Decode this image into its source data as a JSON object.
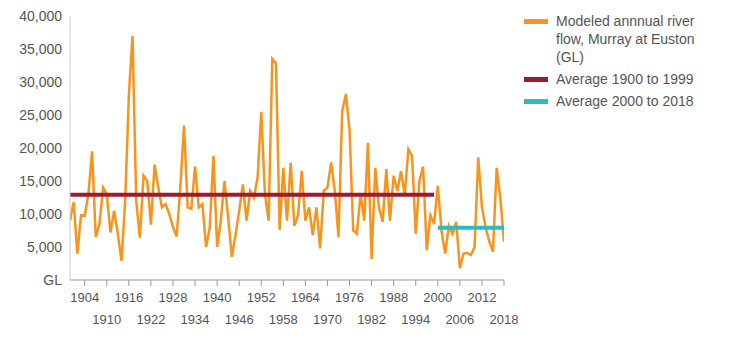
{
  "chart_data": {
    "type": "line",
    "grid": false,
    "x": [
      1900,
      1901,
      1902,
      1903,
      1904,
      1905,
      1906,
      1907,
      1908,
      1909,
      1910,
      1911,
      1912,
      1913,
      1914,
      1915,
      1916,
      1917,
      1918,
      1919,
      1920,
      1921,
      1922,
      1923,
      1924,
      1925,
      1926,
      1927,
      1928,
      1929,
      1930,
      1931,
      1932,
      1933,
      1934,
      1935,
      1936,
      1937,
      1938,
      1939,
      1940,
      1941,
      1942,
      1943,
      1944,
      1945,
      1946,
      1947,
      1948,
      1949,
      1950,
      1951,
      1952,
      1953,
      1954,
      1955,
      1956,
      1957,
      1958,
      1959,
      1960,
      1961,
      1962,
      1963,
      1964,
      1965,
      1966,
      1967,
      1968,
      1969,
      1970,
      1971,
      1972,
      1973,
      1974,
      1975,
      1976,
      1977,
      1978,
      1979,
      1980,
      1981,
      1982,
      1983,
      1984,
      1985,
      1986,
      1987,
      1988,
      1989,
      1990,
      1991,
      1992,
      1993,
      1994,
      1995,
      1996,
      1997,
      1998,
      1999,
      2000,
      2001,
      2002,
      2003,
      2004,
      2005,
      2006,
      2007,
      2008,
      2009,
      2010,
      2011,
      2012,
      2013,
      2014,
      2015,
      2016,
      2017,
      2018
    ],
    "xlim": [
      1900,
      2018
    ],
    "xticks": [
      1904,
      1910,
      1916,
      1922,
      1928,
      1934,
      1940,
      1946,
      1952,
      1958,
      1964,
      1970,
      1976,
      1982,
      1988,
      1994,
      2000,
      2006,
      2012,
      2018
    ],
    "ylim": [
      0,
      40000
    ],
    "yticks": [
      {
        "value": 0,
        "label": "GL"
      },
      {
        "value": 5000,
        "label": "5,000"
      },
      {
        "value": 10000,
        "label": "10,000"
      },
      {
        "value": 15000,
        "label": "15,000"
      },
      {
        "value": 20000,
        "label": "20,000"
      },
      {
        "value": 25000,
        "label": "25,000"
      },
      {
        "value": 30000,
        "label": "30,000"
      },
      {
        "value": 35000,
        "label": "35,000"
      },
      {
        "value": 40000,
        "label": "40,000"
      }
    ],
    "series": [
      {
        "name": "Modeled annnual river flow, Murray at Euston (GL)",
        "color": "#f7941d",
        "values": [
          9000,
          11800,
          4000,
          9800,
          9700,
          13000,
          19500,
          6500,
          8500,
          14000,
          13000,
          7200,
          10500,
          7000,
          2900,
          12000,
          28000,
          37000,
          12000,
          6400,
          15800,
          15000,
          8400,
          17500,
          14000,
          11000,
          11500,
          10000,
          8000,
          6600,
          14000,
          23400,
          11000,
          10800,
          17200,
          11000,
          11500,
          5000,
          8000,
          18800,
          5000,
          9000,
          15000,
          9500,
          3500,
          6800,
          10500,
          14500,
          9000,
          13500,
          12500,
          15500,
          25500,
          13000,
          9000,
          33500,
          32800,
          7600,
          17000,
          9000,
          17800,
          8200,
          9800,
          16500,
          9000,
          11000,
          6800,
          11000,
          4800,
          13500,
          14000,
          17800,
          13500,
          6500,
          25500,
          28200,
          22800,
          7500,
          7000,
          13000,
          9000,
          20800,
          3200,
          17000,
          11000,
          8800,
          16800,
          9000,
          15800,
          13500,
          16500,
          12800,
          19800,
          18800,
          7000,
          15000,
          17200,
          4500,
          9800,
          8500,
          14300,
          7500,
          4000,
          8200,
          7000,
          8800,
          1800,
          4000,
          4100,
          3800,
          5000,
          18600,
          11000,
          8000,
          5800,
          4300,
          17000,
          12500,
          5800
        ]
      },
      {
        "name": "Average 1900 to 1999",
        "color": "#9b1b30",
        "values": [
          12900,
          12900,
          12900,
          12900,
          12900,
          12900,
          12900,
          12900,
          12900,
          12900,
          12900,
          12900,
          12900,
          12900,
          12900,
          12900,
          12900,
          12900,
          12900,
          12900,
          12900,
          12900,
          12900,
          12900,
          12900,
          12900,
          12900,
          12900,
          12900,
          12900,
          12900,
          12900,
          12900,
          12900,
          12900,
          12900,
          12900,
          12900,
          12900,
          12900,
          12900,
          12900,
          12900,
          12900,
          12900,
          12900,
          12900,
          12900,
          12900,
          12900,
          12900,
          12900,
          12900,
          12900,
          12900,
          12900,
          12900,
          12900,
          12900,
          12900,
          12900,
          12900,
          12900,
          12900,
          12900,
          12900,
          12900,
          12900,
          12900,
          12900,
          12900,
          12900,
          12900,
          12900,
          12900,
          12900,
          12900,
          12900,
          12900,
          12900,
          12900,
          12900,
          12900,
          12900,
          12900,
          12900,
          12900,
          12900,
          12900,
          12900,
          12900,
          12900,
          12900,
          12900,
          12900,
          12900,
          12900,
          12900,
          12900,
          12900,
          null,
          null,
          null,
          null,
          null,
          null,
          null,
          null,
          null,
          null,
          null,
          null,
          null,
          null,
          null,
          null,
          null,
          null,
          null
        ]
      },
      {
        "name": "Average 2000 to 2018",
        "color": "#2bbcbf",
        "values": [
          null,
          null,
          null,
          null,
          null,
          null,
          null,
          null,
          null,
          null,
          null,
          null,
          null,
          null,
          null,
          null,
          null,
          null,
          null,
          null,
          null,
          null,
          null,
          null,
          null,
          null,
          null,
          null,
          null,
          null,
          null,
          null,
          null,
          null,
          null,
          null,
          null,
          null,
          null,
          null,
          null,
          null,
          null,
          null,
          null,
          null,
          null,
          null,
          null,
          null,
          null,
          null,
          null,
          null,
          null,
          null,
          null,
          null,
          null,
          null,
          null,
          null,
          null,
          null,
          null,
          null,
          null,
          null,
          null,
          null,
          null,
          null,
          null,
          null,
          null,
          null,
          null,
          null,
          null,
          null,
          null,
          null,
          null,
          null,
          null,
          null,
          null,
          null,
          null,
          null,
          null,
          null,
          null,
          null,
          null,
          null,
          null,
          null,
          null,
          null,
          7900,
          7900,
          7900,
          7900,
          7900,
          7900,
          7900,
          7900,
          7900,
          7900,
          7900,
          7900,
          7900,
          7900,
          7900,
          7900,
          7900,
          7900,
          7900
        ]
      }
    ]
  }
}
